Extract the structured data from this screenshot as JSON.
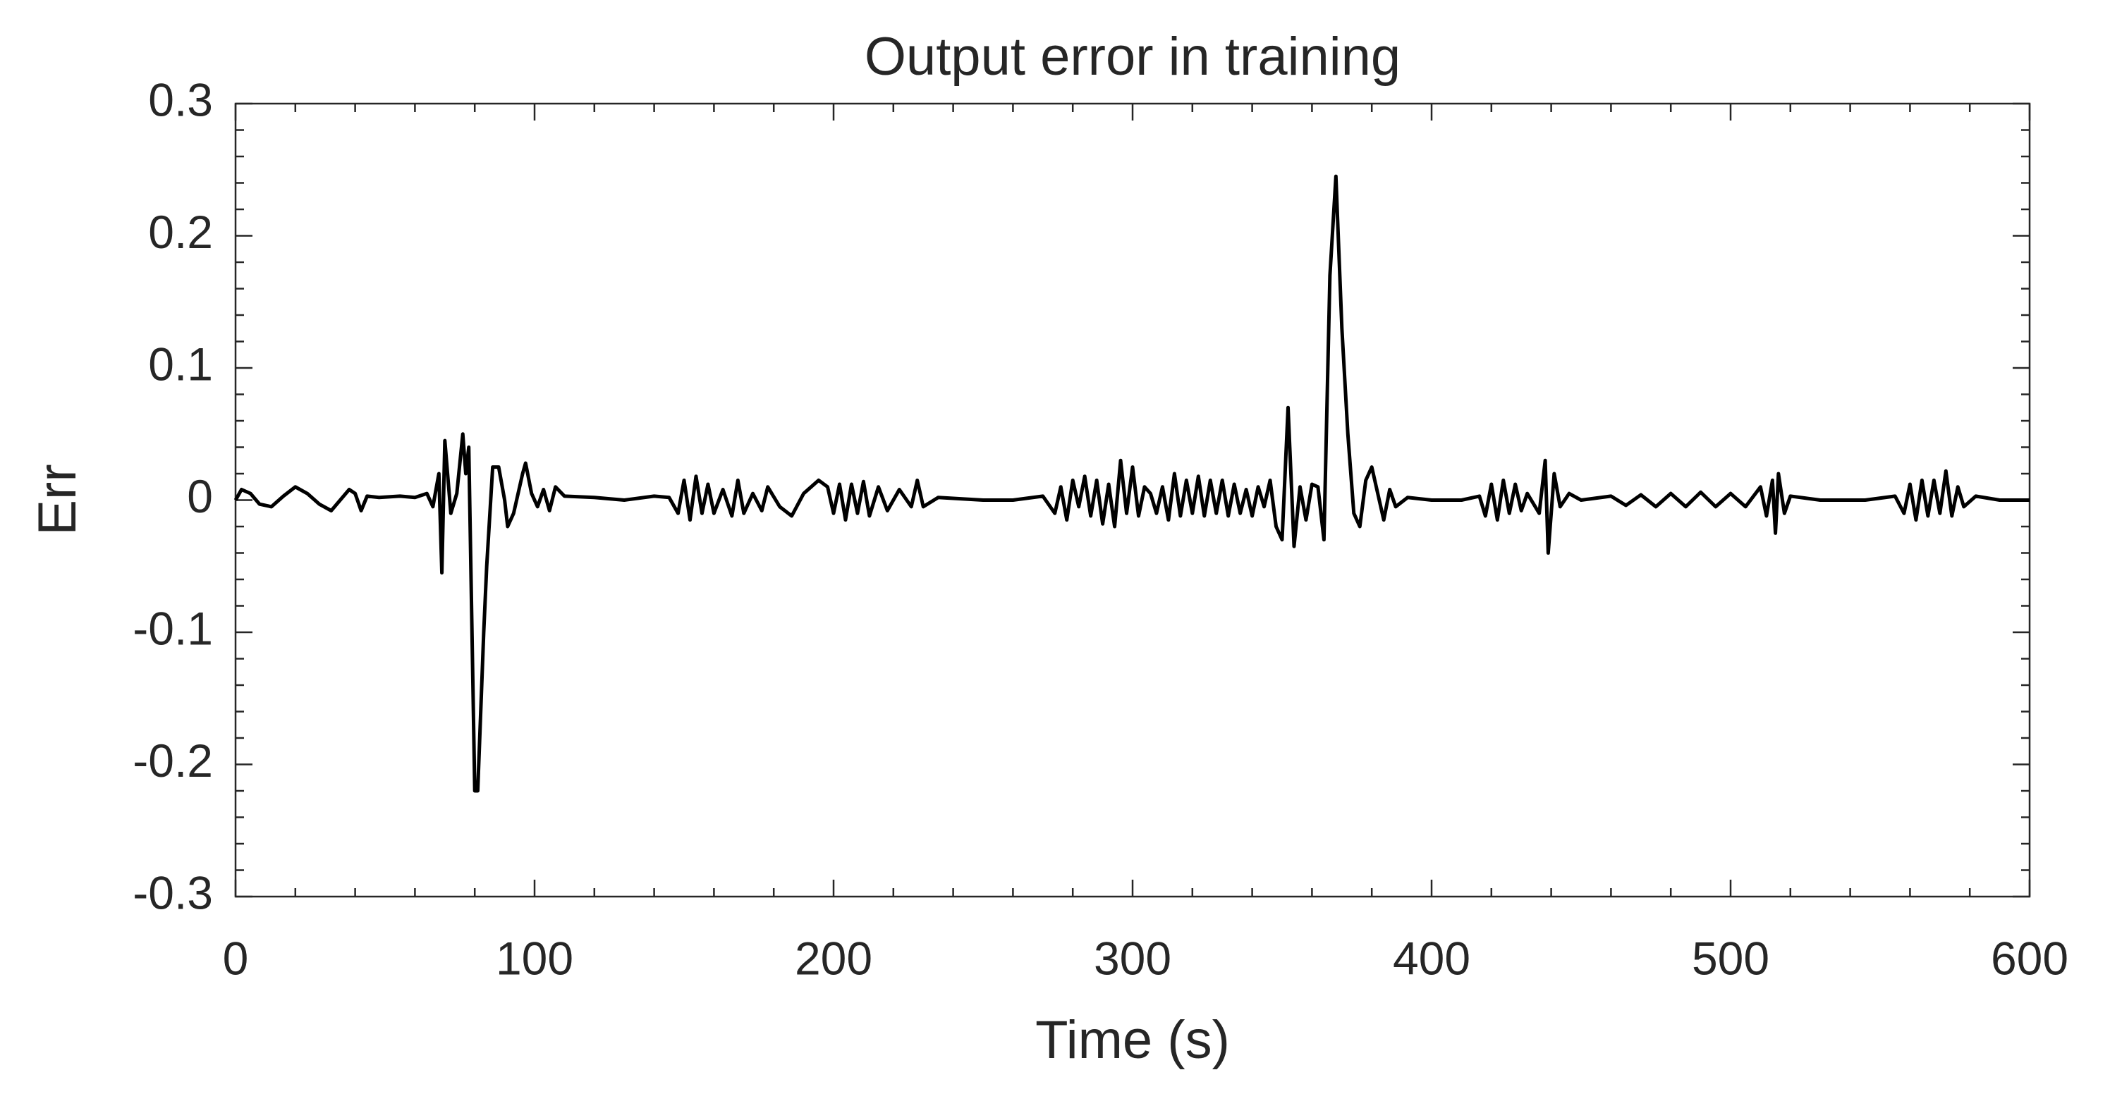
{
  "chart_data": {
    "type": "line",
    "title": "Output error in training",
    "xlabel": "Time (s)",
    "ylabel": "Err",
    "xlim": [
      0,
      600
    ],
    "ylim": [
      -0.3,
      0.3
    ],
    "xticks": [
      0,
      100,
      200,
      300,
      400,
      500,
      600
    ],
    "yticks": [
      -0.3,
      -0.2,
      -0.1,
      0,
      0.1,
      0.2,
      0.3
    ],
    "xminorticks": [
      20,
      40,
      60,
      80,
      120,
      140,
      160,
      180,
      220,
      240,
      260,
      280,
      320,
      340,
      360,
      380,
      420,
      440,
      460,
      480,
      520,
      540,
      560,
      580
    ],
    "yminorticks": [
      -0.28,
      -0.26,
      -0.24,
      -0.22,
      -0.18,
      -0.16,
      -0.14,
      -0.12,
      -0.08,
      -0.06,
      -0.04,
      -0.02,
      0.02,
      0.04,
      0.06,
      0.08,
      0.12,
      0.14,
      0.16,
      0.18,
      0.22,
      0.24,
      0.26,
      0.28
    ],
    "grid": false,
    "series": [
      {
        "color": "#000000",
        "x": [
          0,
          2,
          5,
          8,
          12,
          16,
          20,
          24,
          28,
          32,
          35,
          38,
          40,
          42,
          44,
          48,
          55,
          60,
          64,
          66,
          68,
          69,
          70,
          72,
          74,
          76,
          77,
          78,
          80,
          81,
          83,
          84,
          86,
          88,
          90,
          91,
          93,
          96,
          97,
          99,
          101,
          103,
          105,
          107,
          110,
          120,
          130,
          140,
          145,
          148,
          150,
          152,
          154,
          156,
          158,
          160,
          163,
          166,
          168,
          170,
          173,
          176,
          178,
          182,
          186,
          190,
          195,
          198,
          200,
          202,
          204,
          206,
          208,
          210,
          212,
          215,
          218,
          222,
          226,
          228,
          230,
          235,
          250,
          260,
          270,
          274,
          276,
          278,
          280,
          282,
          284,
          286,
          288,
          290,
          292,
          294,
          296,
          298,
          300,
          302,
          304,
          306,
          308,
          310,
          312,
          314,
          316,
          318,
          320,
          322,
          324,
          326,
          328,
          330,
          332,
          334,
          336,
          338,
          340,
          342,
          344,
          346,
          348,
          350,
          352,
          354,
          356,
          358,
          360,
          362,
          364,
          366,
          368,
          370,
          372,
          374,
          376,
          378,
          380,
          382,
          384,
          386,
          388,
          392,
          400,
          410,
          416,
          418,
          420,
          422,
          424,
          426,
          428,
          430,
          432,
          436,
          438,
          439,
          441,
          443,
          446,
          450,
          460,
          465,
          470,
          475,
          480,
          485,
          490,
          495,
          500,
          505,
          510,
          512,
          514,
          515,
          516,
          518,
          520,
          530,
          545,
          555,
          558,
          560,
          562,
          564,
          566,
          568,
          570,
          572,
          574,
          576,
          578,
          582,
          590,
          600
        ],
        "values": [
          0,
          0.008,
          0.005,
          -0.003,
          -0.005,
          0.003,
          0.01,
          0.005,
          -0.003,
          -0.008,
          0,
          0.008,
          0.005,
          -0.008,
          0.003,
          0.002,
          0.003,
          0.002,
          0.005,
          -0.005,
          0.02,
          -0.055,
          0.045,
          -0.01,
          0.005,
          0.05,
          0.02,
          0.04,
          -0.22,
          -0.22,
          -0.1,
          -0.05,
          0.025,
          0.025,
          0,
          -0.02,
          -0.01,
          0.02,
          0.028,
          0.005,
          -0.005,
          0.008,
          -0.008,
          0.01,
          0.003,
          0.002,
          0,
          0.003,
          0.002,
          -0.01,
          0.015,
          -0.015,
          0.018,
          -0.01,
          0.012,
          -0.01,
          0.008,
          -0.012,
          0.015,
          -0.01,
          0.005,
          -0.008,
          0.01,
          -0.005,
          -0.012,
          0.005,
          0.015,
          0.01,
          -0.01,
          0.012,
          -0.015,
          0.012,
          -0.01,
          0.014,
          -0.012,
          0.01,
          -0.008,
          0.008,
          -0.005,
          0.015,
          -0.005,
          0.002,
          0,
          0,
          0.003,
          -0.01,
          0.01,
          -0.015,
          0.015,
          -0.005,
          0.018,
          -0.012,
          0.015,
          -0.018,
          0.012,
          -0.02,
          0.03,
          -0.01,
          0.025,
          -0.012,
          0.01,
          0.005,
          -0.01,
          0.01,
          -0.015,
          0.02,
          -0.012,
          0.015,
          -0.01,
          0.018,
          -0.012,
          0.015,
          -0.01,
          0.015,
          -0.012,
          0.012,
          -0.01,
          0.008,
          -0.012,
          0.01,
          -0.005,
          0.015,
          -0.02,
          -0.03,
          0.07,
          -0.035,
          0.01,
          -0.015,
          0.012,
          0.01,
          -0.03,
          0.17,
          0.245,
          0.13,
          0.05,
          -0.01,
          -0.02,
          0.015,
          0.025,
          0.005,
          -0.015,
          0.008,
          -0.005,
          0.002,
          0,
          0,
          0.003,
          -0.012,
          0.012,
          -0.015,
          0.015,
          -0.01,
          0.012,
          -0.008,
          0.005,
          -0.01,
          0.03,
          -0.04,
          0.02,
          -0.005,
          0.005,
          0,
          0.003,
          -0.004,
          0.004,
          -0.005,
          0.005,
          -0.005,
          0.006,
          -0.005,
          0.005,
          -0.005,
          0.01,
          -0.012,
          0.015,
          -0.025,
          0.02,
          -0.01,
          0.003,
          0,
          0,
          0.003,
          -0.01,
          0.012,
          -0.015,
          0.015,
          -0.012,
          0.015,
          -0.01,
          0.022,
          -0.012,
          0.01,
          -0.005,
          0.003,
          0,
          0
        ]
      }
    ]
  }
}
